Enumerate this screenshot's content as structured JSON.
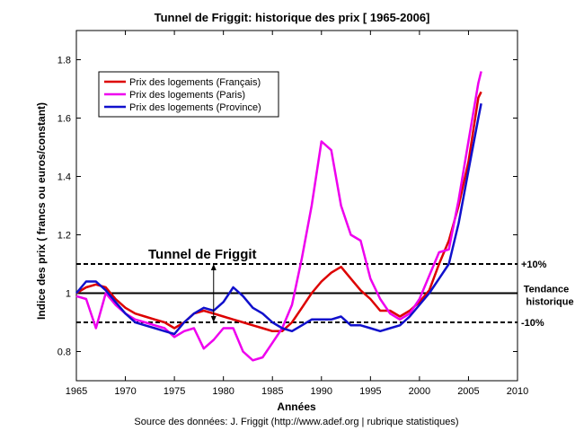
{
  "chart_data": {
    "type": "line",
    "title": "Tunnel de Friggit: historique des prix [ 1965-2006]",
    "xlabel": "Années",
    "ylabel": "Indice des prix ( francs ou euros/constant)",
    "source": "Source des données: J. Friggit (http://www.adef.org | rubrique statistiques)",
    "xlim": [
      1965,
      2010
    ],
    "ylim": [
      0.7,
      1.9
    ],
    "xticks": [
      1965,
      1970,
      1975,
      1980,
      1985,
      1990,
      1995,
      2000,
      2005,
      2010
    ],
    "yticks": [
      0.8,
      1,
      1.2,
      1.4,
      1.6,
      1.8
    ],
    "ytick_labels": [
      "0.8",
      "1",
      "1.2",
      "1.4",
      "1.6",
      "1.8"
    ],
    "grid": false,
    "legend_position": "top-left",
    "series": [
      {
        "name": "Prix des logements (Français)",
        "color": "#dd0000",
        "points": [
          [
            1965,
            1.0
          ],
          [
            1966,
            1.02
          ],
          [
            1967,
            1.03
          ],
          [
            1968,
            1.02
          ],
          [
            1969,
            0.98
          ],
          [
            1970,
            0.95
          ],
          [
            1971,
            0.93
          ],
          [
            1972,
            0.92
          ],
          [
            1973,
            0.91
          ],
          [
            1974,
            0.9
          ],
          [
            1975,
            0.88
          ],
          [
            1976,
            0.9
          ],
          [
            1977,
            0.93
          ],
          [
            1978,
            0.94
          ],
          [
            1979,
            0.93
          ],
          [
            1980,
            0.92
          ],
          [
            1981,
            0.91
          ],
          [
            1982,
            0.9
          ],
          [
            1983,
            0.89
          ],
          [
            1984,
            0.88
          ],
          [
            1985,
            0.87
          ],
          [
            1986,
            0.87
          ],
          [
            1987,
            0.9
          ],
          [
            1988,
            0.95
          ],
          [
            1989,
            1.0
          ],
          [
            1990,
            1.04
          ],
          [
            1991,
            1.07
          ],
          [
            1992,
            1.09
          ],
          [
            1993,
            1.05
          ],
          [
            1994,
            1.01
          ],
          [
            1995,
            0.98
          ],
          [
            1996,
            0.94
          ],
          [
            1997,
            0.94
          ],
          [
            1998,
            0.92
          ],
          [
            1999,
            0.94
          ],
          [
            2000,
            0.97
          ],
          [
            2001,
            1.01
          ],
          [
            2002,
            1.1
          ],
          [
            2003,
            1.18
          ],
          [
            2004,
            1.3
          ],
          [
            2005,
            1.45
          ],
          [
            2006,
            1.67
          ],
          [
            2006.3,
            1.69
          ]
        ]
      },
      {
        "name": "Prix des logements (Paris)",
        "color": "#ee00ee",
        "points": [
          [
            1965,
            0.99
          ],
          [
            1966,
            0.98
          ],
          [
            1967,
            0.88
          ],
          [
            1968,
            1.0
          ],
          [
            1969,
            0.96
          ],
          [
            1970,
            0.93
          ],
          [
            1971,
            0.91
          ],
          [
            1972,
            0.9
          ],
          [
            1973,
            0.89
          ],
          [
            1974,
            0.88
          ],
          [
            1975,
            0.85
          ],
          [
            1976,
            0.87
          ],
          [
            1977,
            0.88
          ],
          [
            1978,
            0.81
          ],
          [
            1979,
            0.84
          ],
          [
            1980,
            0.88
          ],
          [
            1981,
            0.88
          ],
          [
            1982,
            0.8
          ],
          [
            1983,
            0.77
          ],
          [
            1984,
            0.78
          ],
          [
            1985,
            0.83
          ],
          [
            1986,
            0.88
          ],
          [
            1987,
            0.96
          ],
          [
            1988,
            1.12
          ],
          [
            1989,
            1.3
          ],
          [
            1990,
            1.52
          ],
          [
            1991,
            1.49
          ],
          [
            1992,
            1.3
          ],
          [
            1993,
            1.2
          ],
          [
            1994,
            1.18
          ],
          [
            1995,
            1.05
          ],
          [
            1996,
            0.98
          ],
          [
            1997,
            0.93
          ],
          [
            1998,
            0.91
          ],
          [
            1999,
            0.93
          ],
          [
            2000,
            0.98
          ],
          [
            2001,
            1.06
          ],
          [
            2002,
            1.14
          ],
          [
            2003,
            1.15
          ],
          [
            2004,
            1.32
          ],
          [
            2005,
            1.52
          ],
          [
            2006,
            1.72
          ],
          [
            2006.3,
            1.76
          ]
        ]
      },
      {
        "name": "Prix des logements (Province)",
        "color": "#1010cc",
        "points": [
          [
            1965,
            1.0
          ],
          [
            1966,
            1.04
          ],
          [
            1967,
            1.04
          ],
          [
            1968,
            1.01
          ],
          [
            1969,
            0.97
          ],
          [
            1970,
            0.93
          ],
          [
            1971,
            0.9
          ],
          [
            1972,
            0.89
          ],
          [
            1973,
            0.88
          ],
          [
            1974,
            0.87
          ],
          [
            1975,
            0.86
          ],
          [
            1976,
            0.9
          ],
          [
            1977,
            0.93
          ],
          [
            1978,
            0.95
          ],
          [
            1979,
            0.94
          ],
          [
            1980,
            0.97
          ],
          [
            1981,
            1.02
          ],
          [
            1982,
            0.99
          ],
          [
            1983,
            0.95
          ],
          [
            1984,
            0.93
          ],
          [
            1985,
            0.9
          ],
          [
            1986,
            0.88
          ],
          [
            1987,
            0.87
          ],
          [
            1988,
            0.89
          ],
          [
            1989,
            0.91
          ],
          [
            1990,
            0.91
          ],
          [
            1991,
            0.91
          ],
          [
            1992,
            0.92
          ],
          [
            1993,
            0.89
          ],
          [
            1994,
            0.89
          ],
          [
            1995,
            0.88
          ],
          [
            1996,
            0.87
          ],
          [
            1997,
            0.88
          ],
          [
            1998,
            0.89
          ],
          [
            1999,
            0.92
          ],
          [
            2000,
            0.96
          ],
          [
            2001,
            1.0
          ],
          [
            2002,
            1.05
          ],
          [
            2003,
            1.1
          ],
          [
            2004,
            1.24
          ],
          [
            2005,
            1.42
          ],
          [
            2006,
            1.6
          ],
          [
            2006.3,
            1.65
          ]
        ]
      }
    ],
    "reference_lines": [
      {
        "value": 1.1,
        "style": "dashed",
        "label": "+10%"
      },
      {
        "value": 1.0,
        "style": "solid",
        "label_1": "Tendance",
        "label_2": "historique"
      },
      {
        "value": 0.9,
        "style": "dashed",
        "label": "-10%"
      }
    ],
    "annotation": {
      "text": "Tunnel de Friggit",
      "arrow_year": 1979,
      "arrow_from": 0.9,
      "arrow_to": 1.1
    }
  }
}
